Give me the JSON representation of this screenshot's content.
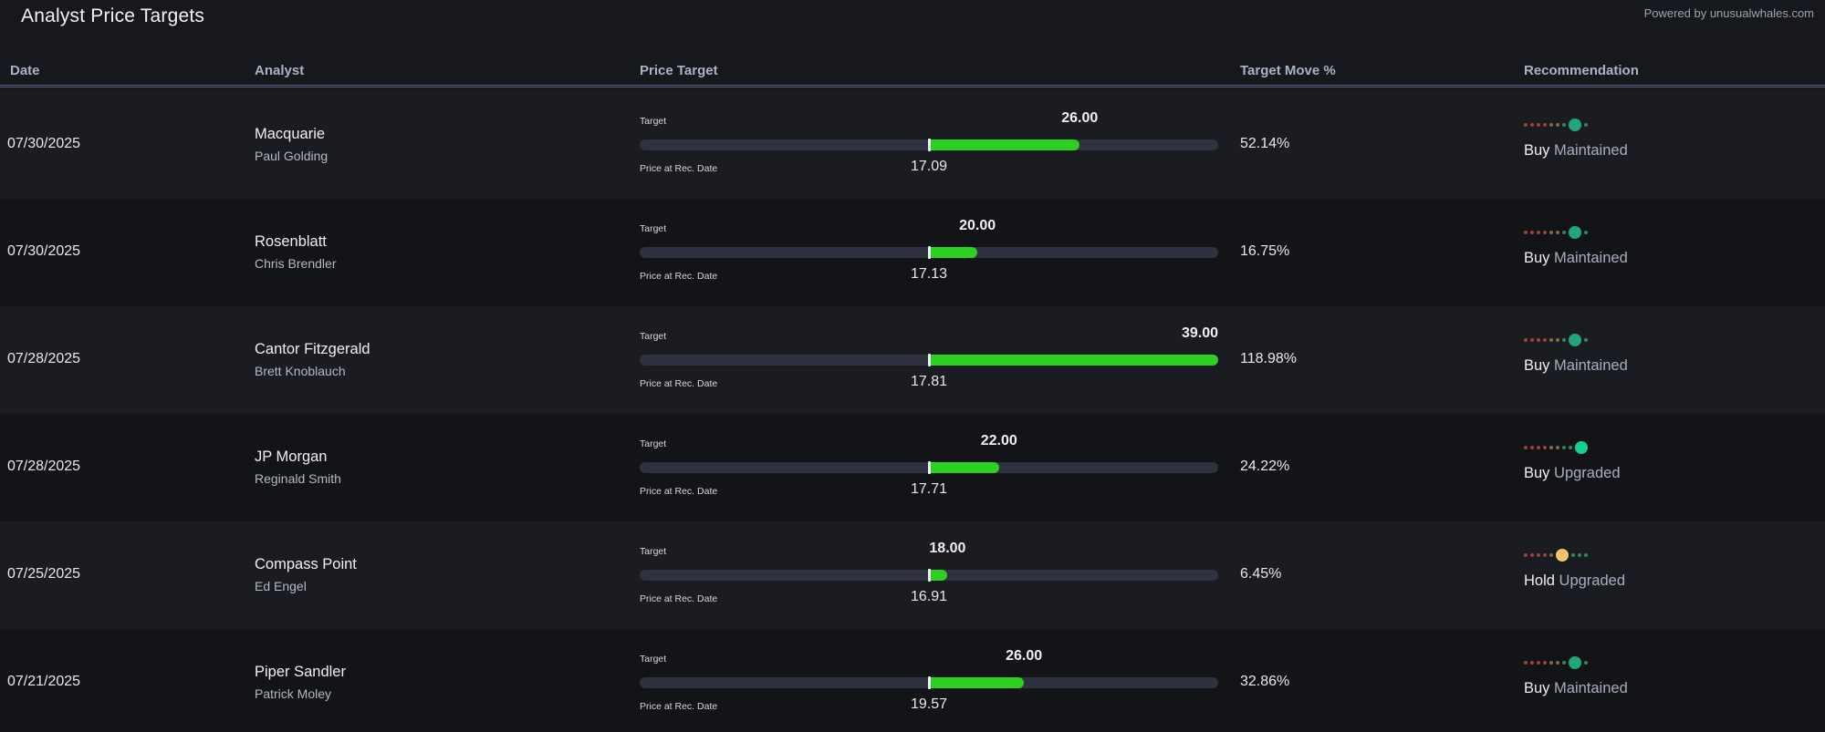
{
  "header": {
    "title": "Analyst Price Targets",
    "powered_by": "Powered by unusualwhales.com"
  },
  "columns": {
    "date": "Date",
    "analyst": "Analyst",
    "price_target": "Price Target",
    "target_move": "Target Move %",
    "recommendation": "Recommendation"
  },
  "labels": {
    "target": "Target",
    "price_at_rec": "Price at Rec. Date"
  },
  "scale": {
    "min": 0,
    "center_price_fraction": 0.5
  },
  "colors": {
    "fill_green": "#2dcf20",
    "buy_dot": "#1fa67a",
    "strong_buy_dot": "#16d08d",
    "hold_dot": "#f2c46d",
    "sell_dots": "#a0403f",
    "neutral_dots": "#8a6a3c",
    "buy_small_dots": "#2f8c55"
  },
  "rows": [
    {
      "date": "07/30/2025",
      "firm": "Macquarie",
      "analyst": "Paul Golding",
      "target": "26.00",
      "price": "17.09",
      "move": "52.14%",
      "rating": "Buy",
      "action": "Maintained",
      "level": 7
    },
    {
      "date": "07/30/2025",
      "firm": "Rosenblatt",
      "analyst": "Chris Brendler",
      "target": "20.00",
      "price": "17.13",
      "move": "16.75%",
      "rating": "Buy",
      "action": "Maintained",
      "level": 7
    },
    {
      "date": "07/28/2025",
      "firm": "Cantor Fitzgerald",
      "analyst": "Brett Knoblauch",
      "target": "39.00",
      "price": "17.81",
      "move": "118.98%",
      "rating": "Buy",
      "action": "Maintained",
      "level": 7
    },
    {
      "date": "07/28/2025",
      "firm": "JP Morgan",
      "analyst": "Reginald Smith",
      "target": "22.00",
      "price": "17.71",
      "move": "24.22%",
      "rating": "Buy",
      "action": "Upgraded",
      "level": 8
    },
    {
      "date": "07/25/2025",
      "firm": "Compass Point",
      "analyst": "Ed Engel",
      "target": "18.00",
      "price": "16.91",
      "move": "6.45%",
      "rating": "Hold",
      "action": "Upgraded",
      "level": 5
    },
    {
      "date": "07/21/2025",
      "firm": "Piper Sandler",
      "analyst": "Patrick Moley",
      "target": "26.00",
      "price": "19.57",
      "move": "32.86%",
      "rating": "Buy",
      "action": "Maintained",
      "level": 7
    }
  ]
}
